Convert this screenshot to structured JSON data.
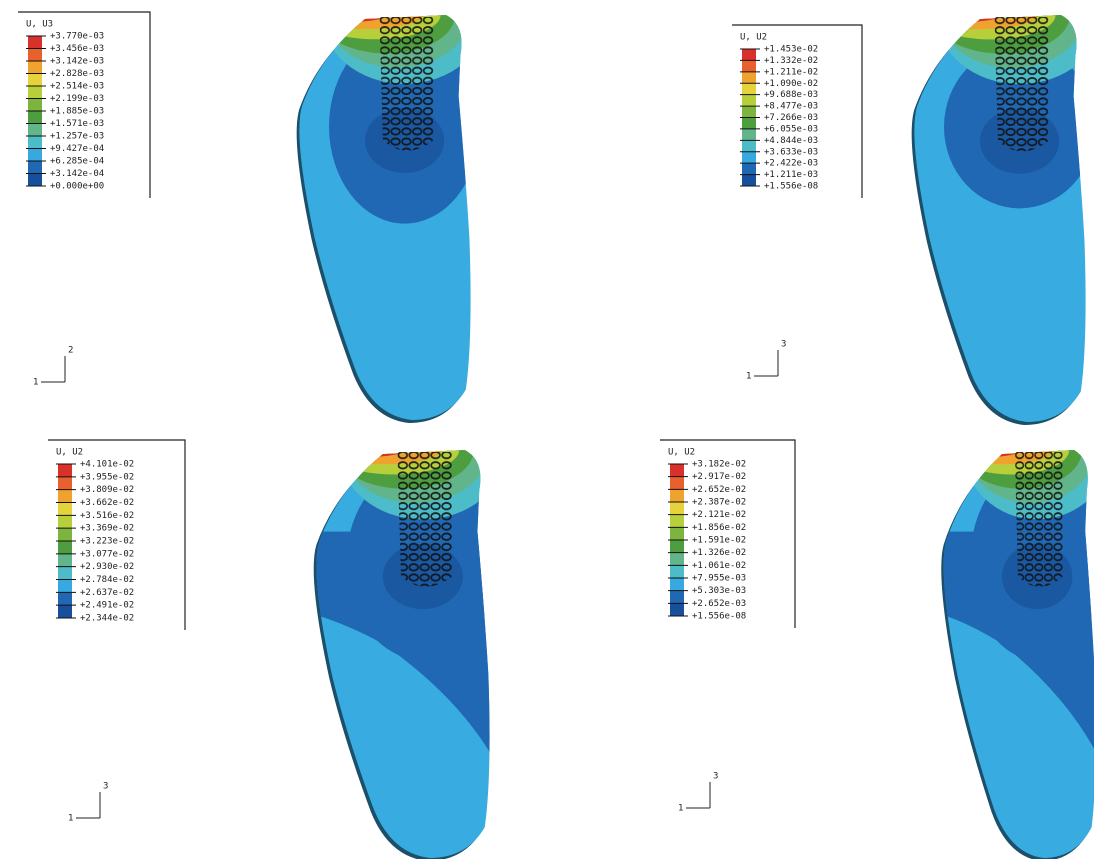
{
  "panels": [
    {
      "legend_title": "U, U3",
      "legend_labels": [
        "+3.770e-03",
        "+3.456e-03",
        "+3.142e-03",
        "+2.828e-03",
        "+2.514e-03",
        "+2.199e-03",
        "+1.885e-03",
        "+1.571e-03",
        "+1.257e-03",
        "+9.427e-04",
        "+6.285e-04",
        "+3.142e-04",
        "+0.000e+00"
      ],
      "triad_labels": [
        "2",
        "1"
      ]
    },
    {
      "legend_title": "U, U2",
      "legend_labels": [
        "+1.453e-02",
        "+1.332e-02",
        "+1.211e-02",
        "+1.090e-02",
        "+9.688e-03",
        "+8.477e-03",
        "+7.266e-03",
        "+6.055e-03",
        "+4.844e-03",
        "+3.633e-03",
        "+2.422e-03",
        "+1.211e-03",
        "+1.556e-08"
      ],
      "triad_labels": [
        "3",
        "1"
      ]
    },
    {
      "legend_title": "U, U2",
      "legend_labels": [
        "+4.101e-02",
        "+3.955e-02",
        "+3.809e-02",
        "+3.662e-02",
        "+3.516e-02",
        "+3.369e-02",
        "+3.223e-02",
        "+3.077e-02",
        "+2.930e-02",
        "+2.784e-02",
        "+2.637e-02",
        "+2.491e-02",
        "+2.344e-02"
      ],
      "triad_labels": [
        "3",
        "1"
      ]
    },
    {
      "legend_title": "U, U2",
      "legend_labels": [
        "+3.182e-02",
        "+2.917e-02",
        "+2.652e-02",
        "+2.387e-02",
        "+2.121e-02",
        "+1.856e-02",
        "+1.591e-02",
        "+1.326e-02",
        "+1.061e-02",
        "+7.955e-03",
        "+5.303e-03",
        "+2.652e-03",
        "+1.556e-08"
      ],
      "triad_labels": [
        "3",
        "1"
      ]
    }
  ]
}
